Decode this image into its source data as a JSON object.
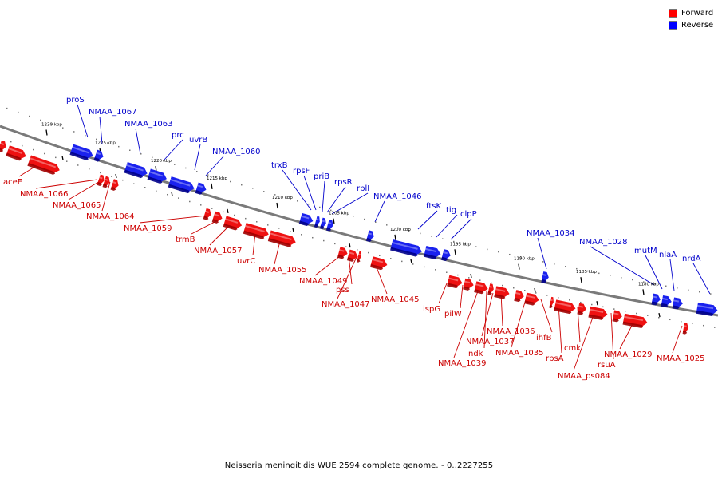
{
  "legend": [
    {
      "label": "Forward",
      "color": "#ff0000"
    },
    {
      "label": "Reverse",
      "color": "#0000ff"
    }
  ],
  "caption": "Neisseria meningitidis WUE 2594 complete genome. - 0..2227255",
  "ticks": [
    "1230 kbp",
    "1225 kbp",
    "1220 kbp",
    "1215 kbp",
    "1210 kbp",
    "1205 kbp",
    "1200 kbp",
    "1195 kbp",
    "1190 kbp",
    "1185 kbp",
    "1180 kbp"
  ],
  "forward_labels": [
    "aceE",
    "NMAA_1066",
    "NMAA_1065",
    "NMAA_1064",
    "NMAA_1059",
    "trmB",
    "NMAA_1057",
    "uvrC",
    "NMAA_1055",
    "NMAA_1049",
    "pss",
    "NMAA_1047",
    "NMAA_1045",
    "ispG",
    "pilW",
    "NMAA_1039",
    "ndk",
    "NMAA_1037",
    "NMAA_1036",
    "NMAA_1035",
    "ihfB",
    "rpsA",
    "cmk",
    "NMAA_ps084",
    "rsuA",
    "NMAA_1029",
    "NMAA_1025"
  ],
  "reverse_labels": [
    "proS",
    "NMAA_1067",
    "NMAA_1063",
    "prc",
    "uvrB",
    "NMAA_1060",
    "trxB",
    "rpsF",
    "priB",
    "rpsR",
    "rplI",
    "NMAA_1046",
    "ftsK",
    "tig",
    "clpP",
    "NMAA_1034",
    "NMAA_1028",
    "mutM",
    "nlaA",
    "nrdA"
  ]
}
